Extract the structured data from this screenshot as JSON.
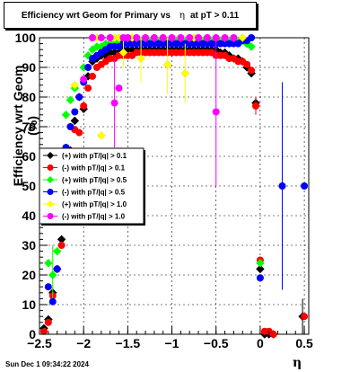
{
  "title_pre": "Efficiency wrt Geom for Primary vs",
  "title_sym": "η",
  "title_post": "at pT > 0.11",
  "footer_date": "Sun Dec  1 09:34:22 2024",
  "chart_data": {
    "type": "scatter",
    "title": "Efficiency wrt Geom for Primary vs η at pT > 0.11",
    "xlabel": "η",
    "ylabel": "Efficiency wrt Geom (%)",
    "xlim": [
      -2.5,
      0.55
    ],
    "ylim": [
      0,
      100
    ],
    "xticks": [
      -2.5,
      -2,
      -1.5,
      -1,
      -0.5,
      0,
      0.5
    ],
    "xtick_labels": [
      "−2.5",
      "−2",
      "−1.5",
      "−1",
      "−0.5",
      "0",
      "0.5"
    ],
    "yticks": [
      0,
      10,
      20,
      30,
      40,
      50,
      60,
      70,
      80,
      90,
      100
    ],
    "grid": true,
    "legend_position": "center-left",
    "series": [
      {
        "name": "(+) with pT/|q| > 0.1",
        "color": "#000000",
        "points": [
          [
            -2.45,
            2
          ],
          [
            -2.4,
            5
          ],
          [
            -2.35,
            14
          ],
          [
            -2.3,
            22
          ],
          [
            -2.25,
            32
          ],
          [
            -2.2,
            52
          ],
          [
            -2.15,
            62
          ],
          [
            -2.1,
            72
          ],
          [
            -2.05,
            80
          ],
          [
            -2.0,
            76
          ],
          [
            -1.95,
            87
          ],
          [
            -1.9,
            92
          ],
          [
            -1.85,
            93
          ],
          [
            -1.8,
            94
          ],
          [
            -1.75,
            94
          ],
          [
            -1.7,
            95
          ],
          [
            -1.65,
            95
          ],
          [
            -1.6,
            95
          ],
          [
            -1.55,
            96
          ],
          [
            -1.5,
            96
          ],
          [
            -1.45,
            96
          ],
          [
            -1.4,
            96
          ],
          [
            -1.35,
            96
          ],
          [
            -1.3,
            96
          ],
          [
            -1.25,
            96
          ],
          [
            -1.2,
            96
          ],
          [
            -1.15,
            96
          ],
          [
            -1.1,
            96
          ],
          [
            -1.05,
            96
          ],
          [
            -1.0,
            96
          ],
          [
            -0.95,
            96
          ],
          [
            -0.9,
            96
          ],
          [
            -0.85,
            96
          ],
          [
            -0.8,
            96
          ],
          [
            -0.75,
            96
          ],
          [
            -0.7,
            96
          ],
          [
            -0.65,
            96
          ],
          [
            -0.6,
            96
          ],
          [
            -0.55,
            96
          ],
          [
            -0.5,
            96
          ],
          [
            -0.45,
            95
          ],
          [
            -0.4,
            95
          ],
          [
            -0.35,
            94
          ],
          [
            -0.3,
            93
          ],
          [
            -0.25,
            93
          ],
          [
            -0.2,
            92
          ],
          [
            -0.15,
            90
          ],
          [
            -0.1,
            88
          ],
          [
            -0.05,
            78
          ],
          [
            0.0,
            22
          ],
          [
            0.05,
            0
          ],
          [
            0.1,
            0
          ],
          [
            0.15,
            0
          ],
          [
            0.48,
            6
          ]
        ],
        "errors": {
          "-0.05": 2,
          "0.00": 4,
          "0.48": 6
        }
      },
      {
        "name": "(-) with pT/|q| > 0.1",
        "color": "#ff0000",
        "points": [
          [
            -2.45,
            1
          ],
          [
            -2.4,
            4
          ],
          [
            -2.35,
            13
          ],
          [
            -2.3,
            22
          ],
          [
            -2.25,
            30
          ],
          [
            -2.2,
            51
          ],
          [
            -2.15,
            61
          ],
          [
            -2.1,
            69
          ],
          [
            -2.05,
            68
          ],
          [
            -2.0,
            77
          ],
          [
            -1.95,
            83
          ],
          [
            -1.9,
            87
          ],
          [
            -1.85,
            90
          ],
          [
            -1.8,
            91
          ],
          [
            -1.75,
            92
          ],
          [
            -1.7,
            93
          ],
          [
            -1.65,
            93
          ],
          [
            -1.6,
            94
          ],
          [
            -1.55,
            94
          ],
          [
            -1.5,
            94
          ],
          [
            -1.45,
            94
          ],
          [
            -1.4,
            95
          ],
          [
            -1.35,
            95
          ],
          [
            -1.3,
            95
          ],
          [
            -1.25,
            95
          ],
          [
            -1.2,
            95
          ],
          [
            -1.15,
            95
          ],
          [
            -1.1,
            95
          ],
          [
            -1.05,
            95
          ],
          [
            -1.0,
            95
          ],
          [
            -0.95,
            95
          ],
          [
            -0.9,
            95
          ],
          [
            -0.85,
            95
          ],
          [
            -0.8,
            95
          ],
          [
            -0.75,
            95
          ],
          [
            -0.7,
            95
          ],
          [
            -0.65,
            95
          ],
          [
            -0.6,
            95
          ],
          [
            -0.55,
            95
          ],
          [
            -0.5,
            94
          ],
          [
            -0.45,
            94
          ],
          [
            -0.4,
            94
          ],
          [
            -0.35,
            93
          ],
          [
            -0.3,
            93
          ],
          [
            -0.25,
            92
          ],
          [
            -0.2,
            92
          ],
          [
            -0.15,
            91
          ],
          [
            -0.1,
            89
          ],
          [
            -0.05,
            77
          ],
          [
            0.0,
            25
          ],
          [
            0.05,
            1
          ],
          [
            0.1,
            1
          ],
          [
            0.15,
            0
          ],
          [
            0.5,
            6
          ]
        ],
        "errors": {
          "-0.05": 3,
          "0.00": 4,
          "0.50": 5
        }
      },
      {
        "name": "(+) with pT/|q| > 0.5",
        "color": "#00ff00",
        "points": [
          [
            -2.4,
            24
          ],
          [
            -2.35,
            20
          ],
          [
            -2.3,
            28
          ],
          [
            -2.2,
            74
          ],
          [
            -2.15,
            79
          ],
          [
            -2.1,
            83
          ],
          [
            -2.0,
            90
          ],
          [
            -1.95,
            94
          ],
          [
            -1.9,
            96
          ],
          [
            -1.85,
            97
          ],
          [
            -1.8,
            97
          ],
          [
            -1.75,
            98
          ],
          [
            -1.7,
            98
          ],
          [
            -1.65,
            98
          ],
          [
            -1.6,
            99
          ],
          [
            -1.55,
            99
          ],
          [
            -1.5,
            99
          ],
          [
            -1.45,
            99
          ],
          [
            -1.4,
            99
          ],
          [
            -1.35,
            99
          ],
          [
            -1.3,
            99
          ],
          [
            -1.25,
            99
          ],
          [
            -1.2,
            99
          ],
          [
            -1.15,
            99
          ],
          [
            -1.1,
            99
          ],
          [
            -1.05,
            99
          ],
          [
            -1.0,
            99
          ],
          [
            -0.95,
            99
          ],
          [
            -0.9,
            99
          ],
          [
            -0.85,
            99
          ],
          [
            -0.8,
            99
          ],
          [
            -0.75,
            99
          ],
          [
            -0.7,
            99
          ],
          [
            -0.65,
            99
          ],
          [
            -0.6,
            99
          ],
          [
            -0.55,
            99
          ],
          [
            -0.5,
            99
          ],
          [
            -0.45,
            99
          ],
          [
            -0.4,
            99
          ],
          [
            -0.35,
            99
          ],
          [
            -0.3,
            99
          ],
          [
            -0.25,
            99
          ],
          [
            -0.2,
            99
          ],
          [
            -0.15,
            98
          ],
          [
            -0.1,
            97
          ],
          [
            0.0,
            24
          ]
        ],
        "errors": {
          "-2.40": 10,
          "-2.35": 10,
          "0.00": 5
        }
      },
      {
        "name": "(-) with pT/|q| > 0.5",
        "color": "#0000ff",
        "points": [
          [
            -2.4,
            16
          ],
          [
            -2.35,
            11
          ],
          [
            -2.3,
            22
          ],
          [
            -2.25,
            52
          ],
          [
            -2.2,
            63
          ],
          [
            -2.15,
            70
          ],
          [
            -2.1,
            75
          ],
          [
            -2.05,
            80
          ],
          [
            -2.0,
            85
          ],
          [
            -1.95,
            90
          ],
          [
            -1.9,
            93
          ],
          [
            -1.85,
            94
          ],
          [
            -1.8,
            95
          ],
          [
            -1.75,
            96
          ],
          [
            -1.7,
            97
          ],
          [
            -1.65,
            97
          ],
          [
            -1.6,
            97
          ],
          [
            -1.55,
            98
          ],
          [
            -1.5,
            98
          ],
          [
            -1.45,
            98
          ],
          [
            -1.4,
            98
          ],
          [
            -1.35,
            98
          ],
          [
            -1.3,
            98
          ],
          [
            -1.25,
            98
          ],
          [
            -1.2,
            98
          ],
          [
            -1.15,
            98
          ],
          [
            -1.1,
            98
          ],
          [
            -1.05,
            98
          ],
          [
            -1.0,
            98
          ],
          [
            -0.95,
            98
          ],
          [
            -0.9,
            98
          ],
          [
            -0.85,
            98
          ],
          [
            -0.8,
            98
          ],
          [
            -0.75,
            98
          ],
          [
            -0.7,
            98
          ],
          [
            -0.65,
            98
          ],
          [
            -0.6,
            98
          ],
          [
            -0.55,
            98
          ],
          [
            -0.5,
            98
          ],
          [
            -0.45,
            98
          ],
          [
            -0.4,
            98
          ],
          [
            -0.35,
            98
          ],
          [
            -0.3,
            98
          ],
          [
            -0.25,
            98
          ],
          [
            -0.2,
            99
          ],
          [
            -0.15,
            99
          ],
          [
            -0.1,
            100
          ],
          [
            0.0,
            19
          ],
          [
            0.25,
            50
          ],
          [
            0.5,
            50
          ]
        ],
        "errors": {
          "-2.40": 8,
          "0.00": 6,
          "0.25": 35,
          "0.50": 35
        }
      },
      {
        "name": "(+) with pT/|q| > 1.0",
        "color": "#ffff00",
        "points": [
          [
            -2.1,
            84
          ],
          [
            -1.85,
            100
          ],
          [
            -1.8,
            67
          ],
          [
            -1.7,
            100
          ],
          [
            -1.65,
            100
          ],
          [
            -1.6,
            100
          ],
          [
            -1.55,
            95
          ],
          [
            -1.5,
            100
          ],
          [
            -1.45,
            100
          ],
          [
            -1.4,
            100
          ],
          [
            -1.35,
            93
          ],
          [
            -1.3,
            100
          ],
          [
            -1.2,
            100
          ],
          [
            -1.1,
            100
          ],
          [
            -1.05,
            91
          ],
          [
            -1.0,
            100
          ],
          [
            -0.9,
            100
          ],
          [
            -0.85,
            88
          ],
          [
            -0.8,
            100
          ],
          [
            -0.75,
            100
          ],
          [
            -0.7,
            100
          ],
          [
            -0.6,
            100
          ],
          [
            -0.5,
            100
          ],
          [
            -0.4,
            100
          ],
          [
            -0.3,
            100
          ],
          [
            -0.2,
            100
          ]
        ],
        "errors": {
          "-2.10": 8,
          "-1.80": 20,
          "-1.55": 5,
          "-1.35": 8,
          "-1.05": 10,
          "-0.85": 10
        }
      },
      {
        "name": "(-) with pT/|q| > 1.0",
        "color": "#ff00ff",
        "points": [
          [
            -2.0,
            86
          ],
          [
            -1.9,
            100
          ],
          [
            -1.8,
            100
          ],
          [
            -1.7,
            100
          ],
          [
            -1.65,
            78
          ],
          [
            -1.6,
            83
          ],
          [
            -1.55,
            100
          ],
          [
            -1.5,
            100
          ],
          [
            -1.4,
            100
          ],
          [
            -1.3,
            100
          ],
          [
            -1.2,
            100
          ],
          [
            -1.1,
            100
          ],
          [
            -1.0,
            100
          ],
          [
            -0.9,
            100
          ],
          [
            -0.8,
            100
          ],
          [
            -0.7,
            100
          ],
          [
            -0.6,
            100
          ],
          [
            -0.5,
            100
          ],
          [
            -0.4,
            100
          ],
          [
            -0.3,
            100
          ]
        ],
        "errors": {
          "-2.00": 70,
          "-1.65": 15,
          "-1.60": 15,
          "-0.85": 25
        }
      }
    ],
    "extra_points": [
      {
        "series": 5,
        "x": -0.5,
        "y": 75,
        "err": 25
      }
    ]
  }
}
